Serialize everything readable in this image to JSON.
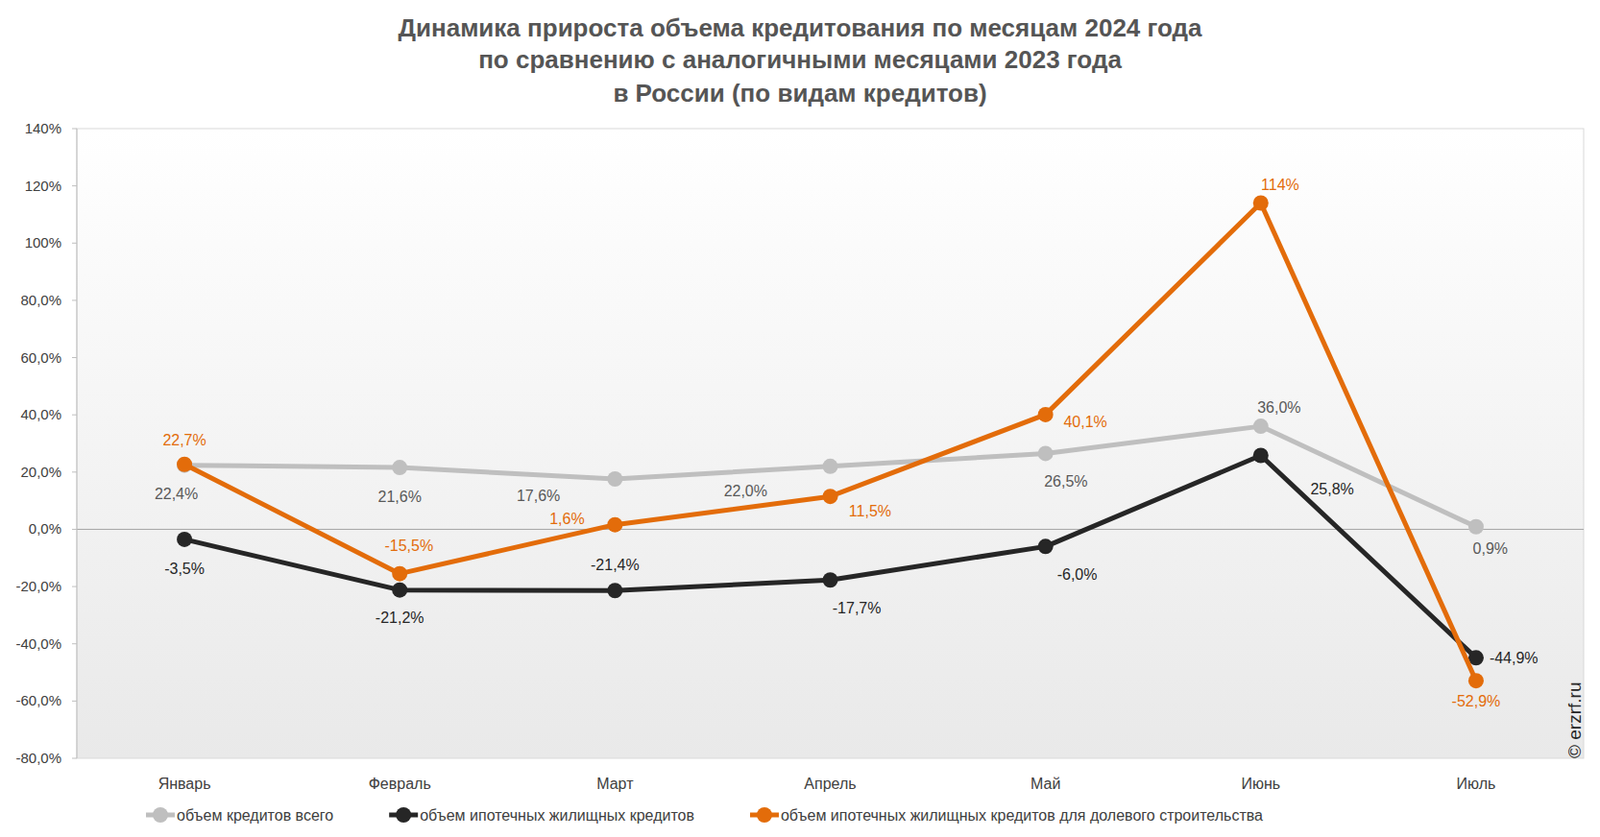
{
  "chart_data": {
    "type": "line",
    "title": "Динамика прироста объема кредитования по месяцам 2024 года\nпо сравнению с аналогичными месяцами 2023 года\nв России (по видам кредитов)",
    "categories": [
      "Январь",
      "Февраль",
      "Март",
      "Апрель",
      "Май",
      "Июнь",
      "Июль"
    ],
    "series": [
      {
        "name": "объем кредитов всего",
        "color": "#bfbfbf",
        "marker": "circle",
        "values": [
          22.4,
          21.6,
          17.6,
          22.0,
          26.5,
          36.0,
          0.9
        ],
        "value_labels": [
          "22,4%",
          "21,6%",
          "17,6%",
          "22,0%",
          "26,5%",
          "36,0%",
          "0,9%"
        ]
      },
      {
        "name": "объем ипотечных жилищных кредитов",
        "color": "#262626",
        "marker": "circle",
        "values": [
          -3.5,
          -21.2,
          -21.4,
          -17.7,
          -6.0,
          25.8,
          -44.9
        ],
        "value_labels": [
          "-3,5%",
          "-21,2%",
          "-21,4%",
          "-17,7%",
          "-6,0%",
          "25,8%",
          "-44,9%"
        ]
      },
      {
        "name": "объем ипотечных жилищных кредитов для долевого строительства",
        "color": "#e36c0a",
        "marker": "circle",
        "values": [
          22.7,
          -15.5,
          1.6,
          11.5,
          40.1,
          114,
          -52.9
        ],
        "value_labels": [
          "22,7%",
          "-15,5%",
          "1,6%",
          "11,5%",
          "40,1%",
          "114%",
          "-52,9%"
        ]
      }
    ],
    "ylim": [
      -80,
      140
    ],
    "yticks": [
      {
        "value": -80,
        "label": "-80,0%"
      },
      {
        "value": -60,
        "label": "-60,0%"
      },
      {
        "value": -40,
        "label": "-40,0%"
      },
      {
        "value": -20,
        "label": "-20,0%"
      },
      {
        "value": 0,
        "label": "0,0%"
      },
      {
        "value": 20,
        "label": "20,0%"
      },
      {
        "value": 40,
        "label": "40,0%"
      },
      {
        "value": 60,
        "label": "60,0%"
      },
      {
        "value": 80,
        "label": "80,0%"
      },
      {
        "value": 100,
        "label": "100%"
      },
      {
        "value": 120,
        "label": "120%"
      },
      {
        "value": 140,
        "label": "140%"
      }
    ],
    "grid": false,
    "data_labels": true,
    "legend": "bottom",
    "annotations": [
      "© erzrf.ru"
    ]
  }
}
